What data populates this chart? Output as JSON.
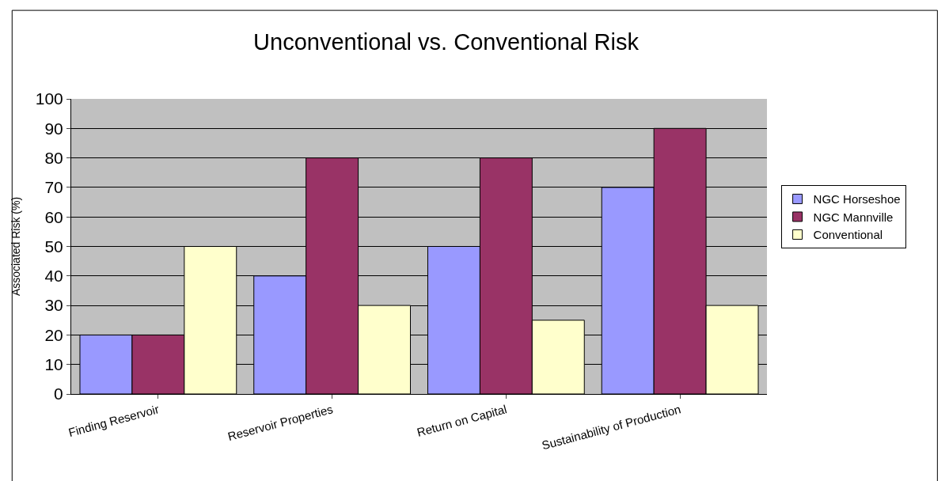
{
  "chart_data": {
    "type": "bar",
    "title": "Unconventional vs. Conventional Risk",
    "ylabel": "Associated Risk (%)",
    "categories": [
      "Finding Reservoir",
      "Reservoir Properties",
      "Return on Capital",
      "Sustainability of Production"
    ],
    "series": [
      {
        "name": "NGC Horseshoe",
        "color": "#9999ff",
        "values": [
          20,
          40,
          50,
          70
        ]
      },
      {
        "name": "NGC Mannville",
        "color": "#993366",
        "values": [
          20,
          80,
          80,
          90
        ]
      },
      {
        "name": "Conventional",
        "color": "#ffffcc",
        "values": [
          50,
          30,
          25,
          30
        ]
      }
    ],
    "ylim": [
      0,
      100
    ],
    "yticks": [
      0,
      10,
      20,
      30,
      40,
      50,
      60,
      70,
      80,
      90,
      100
    ],
    "grid": "y",
    "legend": "right"
  }
}
